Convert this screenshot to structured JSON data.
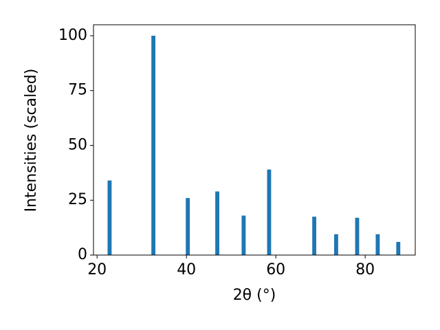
{
  "chart_data": {
    "type": "bar",
    "x": [
      22.8,
      32.6,
      40.3,
      46.9,
      52.8,
      58.5,
      68.6,
      73.5,
      78.2,
      82.8,
      87.4
    ],
    "values": [
      34,
      100,
      26,
      29,
      18,
      39,
      17.5,
      9.5,
      17,
      9.5,
      6
    ],
    "color": "#1f77b4",
    "bar_width": 0.9,
    "xlabel": "2θ (°)",
    "ylabel": "Intensities (scaled)",
    "xlim": [
      19.2,
      91.2
    ],
    "xticks": [
      20,
      40,
      60,
      80
    ],
    "ylim": [
      0,
      105
    ],
    "yticks": [
      0,
      25,
      50,
      75,
      100
    ],
    "grid": false
  }
}
